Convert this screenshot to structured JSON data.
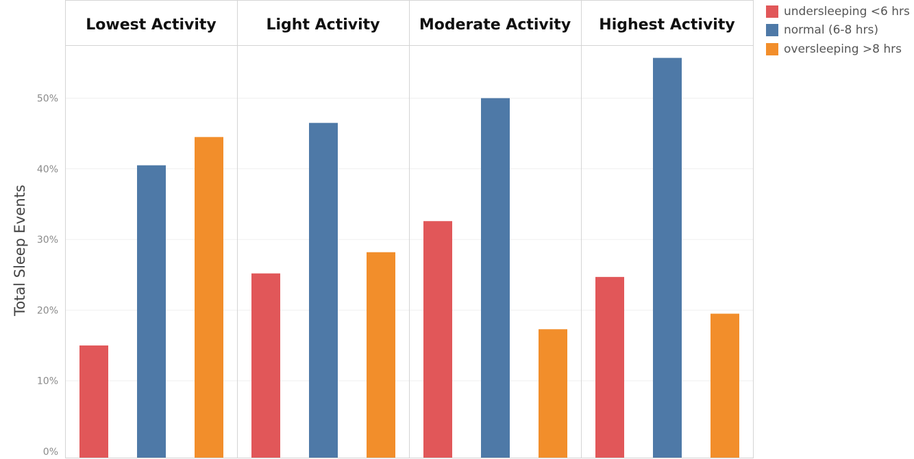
{
  "chart_data": {
    "type": "bar",
    "ylabel": "Total Sleep Events",
    "xlabel": "",
    "ylim": [
      0,
      58
    ],
    "y_ticks": [
      "0%",
      "10%",
      "20%",
      "30%",
      "40%",
      "50%"
    ],
    "y_tick_values": [
      0,
      10,
      20,
      30,
      40,
      50
    ],
    "grid": true,
    "legend_position": "top-right",
    "panels": [
      "Lowest Activity",
      "Light Activity",
      "Moderate Activity",
      "Highest Activity"
    ],
    "series": [
      {
        "name": "undersleeping <6 hrs",
        "color": "#e15759",
        "values": [
          15.0,
          25.2,
          32.6,
          24.7
        ]
      },
      {
        "name": "normal (6-8 hrs)",
        "color": "#4e79a7",
        "values": [
          40.5,
          46.5,
          50.0,
          55.7
        ]
      },
      {
        "name": "oversleeping >8 hrs",
        "color": "#f28e2b",
        "values": [
          44.5,
          28.2,
          17.3,
          19.5
        ]
      }
    ]
  }
}
